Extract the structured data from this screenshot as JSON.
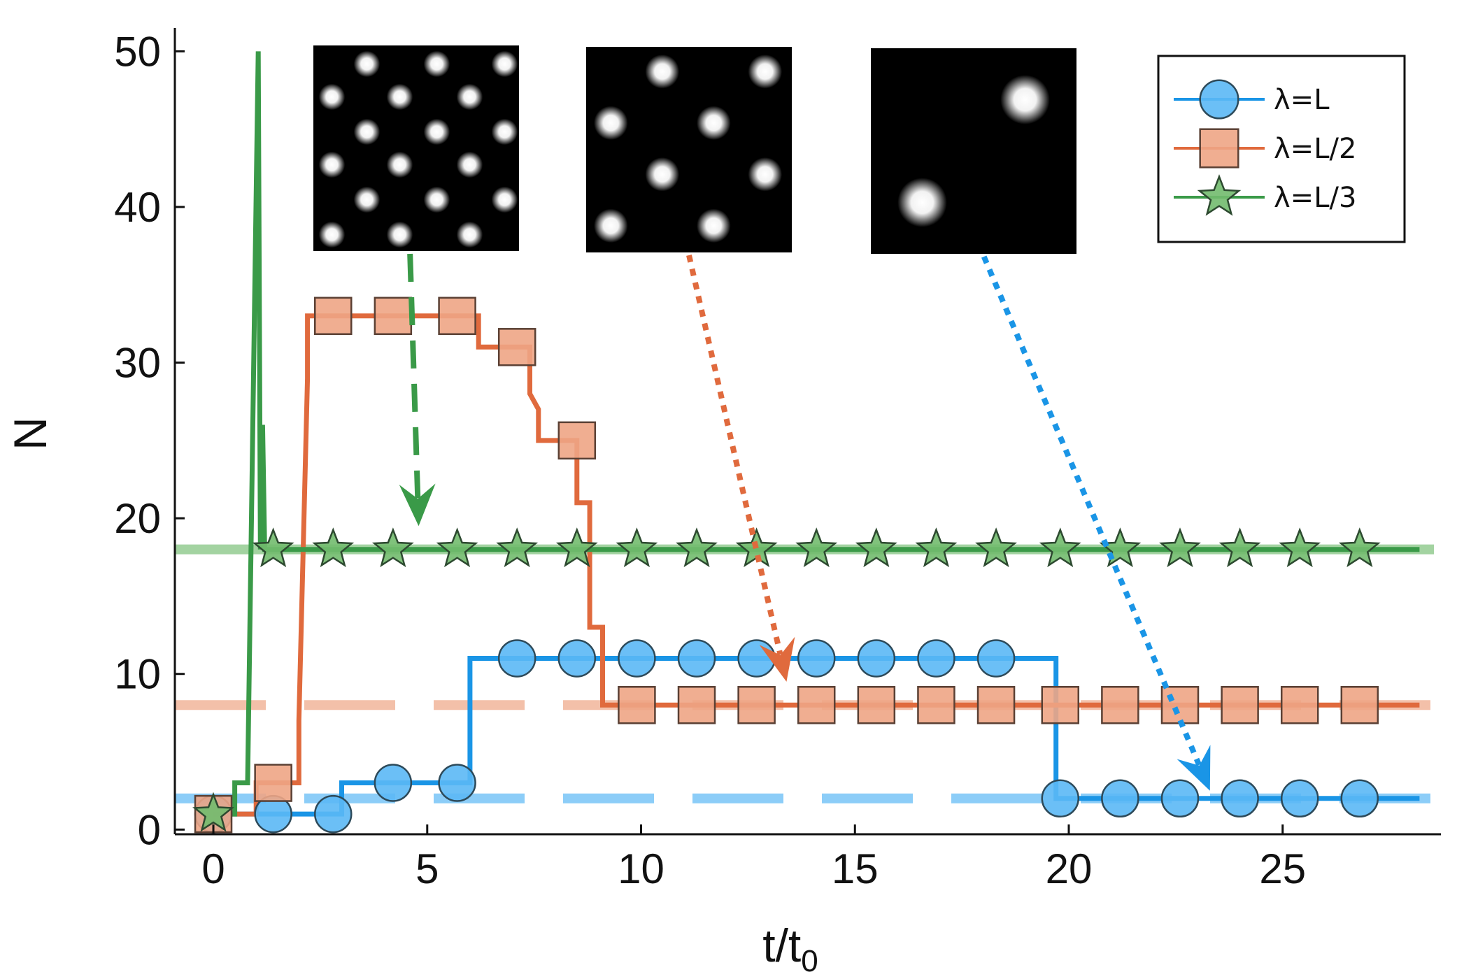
{
  "chart_data": {
    "type": "line",
    "xlabel_main": "t/t",
    "xlabel_sub": "0",
    "ylabel": "N",
    "xlim": [
      -0.9,
      28.7
    ],
    "ylim": [
      -0.3,
      51.5
    ],
    "xticks": [
      0,
      5,
      10,
      15,
      20,
      25
    ],
    "yticks": [
      0,
      10,
      20,
      30,
      40,
      50
    ],
    "grid": false,
    "legend_position": "top-right",
    "series": [
      {
        "name": "λ=L",
        "color": "#1a95e6",
        "fill": "#5bb8f5",
        "marker": "circle",
        "step_x": [
          0,
          0.5,
          3,
          3,
          6,
          6,
          19.7,
          19.7,
          28.2
        ],
        "step_y": [
          1,
          1,
          1,
          3,
          3,
          11,
          11,
          2,
          2
        ],
        "marker_x": [
          0,
          1.4,
          2.8,
          4.2,
          5.7,
          7.1,
          8.5,
          9.9,
          11.3,
          12.7,
          14.1,
          15.5,
          16.9,
          18.3,
          19.8,
          21.2,
          22.6,
          24.0,
          25.4,
          26.8
        ],
        "marker_y": [
          1,
          1,
          1,
          3,
          3,
          11,
          11,
          11,
          11,
          11,
          11,
          11,
          11,
          11,
          2,
          2,
          2,
          2,
          2,
          2
        ],
        "reference_y": 2
      },
      {
        "name": "λ=L/2",
        "color": "#e06a3d",
        "fill": "#eea585",
        "marker": "square",
        "step_x": [
          0,
          1,
          1,
          2,
          2,
          2.2,
          2.2,
          6.2,
          6.2,
          7.4,
          7.4,
          7.6,
          7.6,
          8.5,
          8.5,
          8.8,
          8.8,
          9.1,
          9.1,
          28.2
        ],
        "step_y": [
          1,
          1,
          3,
          3,
          7,
          29,
          33,
          33,
          31,
          31,
          28,
          27,
          25,
          25,
          21,
          21,
          13,
          13,
          8,
          8
        ],
        "marker_x": [
          0,
          1.4,
          2.8,
          4.2,
          5.7,
          7.1,
          8.5,
          9.9,
          11.3,
          12.7,
          14.1,
          15.5,
          16.9,
          18.3,
          19.8,
          21.2,
          22.6,
          24.0,
          25.4,
          26.8
        ],
        "marker_y": [
          1,
          3,
          33,
          33,
          33,
          31,
          25,
          8,
          8,
          8,
          8,
          8,
          8,
          8,
          8,
          8,
          8,
          8,
          8,
          8
        ],
        "reference_y": 8
      },
      {
        "name": "λ=L/3",
        "color": "#3a9a48",
        "fill": "#72bb6e",
        "marker": "star",
        "step_x": [
          0,
          0.5,
          0.5,
          0.8,
          0.8,
          1.05,
          1.1,
          1.15,
          1.2,
          1.28,
          1.35,
          28.2
        ],
        "step_y": [
          1,
          1,
          3,
          3,
          3,
          50,
          18,
          26,
          18,
          18,
          18,
          18
        ],
        "marker_x": [
          0,
          1.4,
          2.8,
          4.2,
          5.7,
          7.1,
          8.5,
          9.9,
          11.3,
          12.7,
          14.1,
          15.5,
          16.9,
          18.3,
          19.8,
          21.2,
          22.6,
          24.0,
          25.4,
          26.8
        ],
        "marker_y": [
          1,
          18,
          18,
          18,
          18,
          18,
          18,
          18,
          18,
          18,
          18,
          18,
          18,
          18,
          18,
          18,
          18,
          18,
          18,
          18
        ],
        "reference_y": 18
      }
    ],
    "insets": [
      {
        "spots": [
          [
            0.26,
            0.09
          ],
          [
            0.6,
            0.09
          ],
          [
            0.93,
            0.09
          ],
          [
            0.09,
            0.25
          ],
          [
            0.42,
            0.25
          ],
          [
            0.76,
            0.25
          ],
          [
            0.26,
            0.42
          ],
          [
            0.6,
            0.42
          ],
          [
            0.93,
            0.42
          ],
          [
            0.09,
            0.58
          ],
          [
            0.42,
            0.58
          ],
          [
            0.76,
            0.58
          ],
          [
            0.26,
            0.75
          ],
          [
            0.6,
            0.75
          ],
          [
            0.93,
            0.75
          ],
          [
            0.09,
            0.92
          ],
          [
            0.42,
            0.92
          ],
          [
            0.76,
            0.92
          ]
        ],
        "spot_size": 0.085,
        "arrow_color": "#3a9a48",
        "arrow_style": "dashed",
        "arrow_target": [
          4.8,
          19.5
        ]
      },
      {
        "spots": [
          [
            0.37,
            0.12
          ],
          [
            0.87,
            0.12
          ],
          [
            0.12,
            0.37
          ],
          [
            0.62,
            0.37
          ],
          [
            0.37,
            0.62
          ],
          [
            0.87,
            0.62
          ],
          [
            0.12,
            0.87
          ],
          [
            0.62,
            0.87
          ]
        ],
        "spot_size": 0.11,
        "arrow_color": "#e06a3d",
        "arrow_style": "dotted",
        "arrow_target": [
          13.4,
          9.5
        ]
      },
      {
        "spots": [
          [
            0.75,
            0.25
          ],
          [
            0.25,
            0.75
          ]
        ],
        "spot_size": 0.16,
        "arrow_color": "#1a95e6",
        "arrow_style": "dotted",
        "arrow_target": [
          23.3,
          2.5
        ]
      }
    ]
  }
}
